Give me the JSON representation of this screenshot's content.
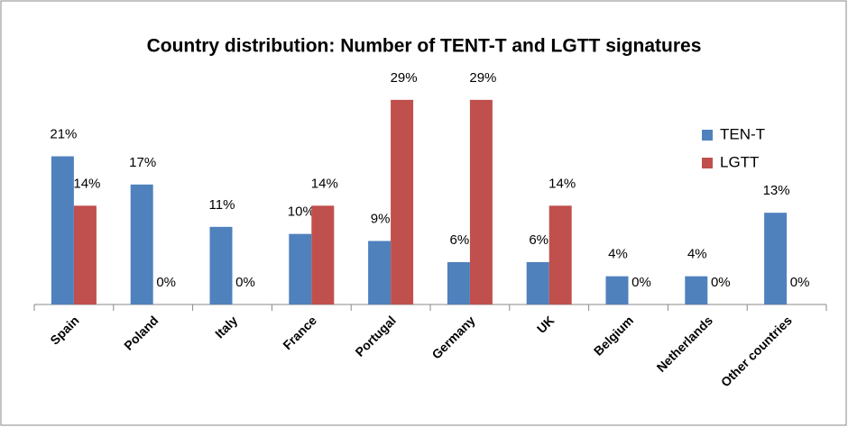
{
  "chart_data": {
    "type": "bar",
    "title": "Country distribution: Number of TENT-T and LGTT signatures",
    "categories": [
      "Spain",
      "Poland",
      "Italy",
      "France",
      "Portugal",
      "Germany",
      "UK",
      "Belgium",
      "Netherlands",
      "Other countries"
    ],
    "series": [
      {
        "name": "TEN-T",
        "color": "#4f81bd",
        "values": [
          21,
          17,
          11,
          10,
          9,
          6,
          6,
          4,
          4,
          13
        ],
        "value_labels": [
          "21%",
          "17%",
          "11%",
          "10%",
          "9%",
          "6%",
          "6%",
          "4%",
          "4%",
          "13%"
        ]
      },
      {
        "name": "LGTT",
        "color": "#c0504d",
        "values": [
          14,
          0,
          0,
          14,
          29,
          29,
          14,
          0,
          0,
          0
        ],
        "value_labels": [
          "14%",
          "0%",
          "0%",
          "14%",
          "29%",
          "29%",
          "14%",
          "0%",
          "0%",
          "0%"
        ]
      }
    ],
    "ylim": [
      0,
      30
    ],
    "legend": "right"
  }
}
